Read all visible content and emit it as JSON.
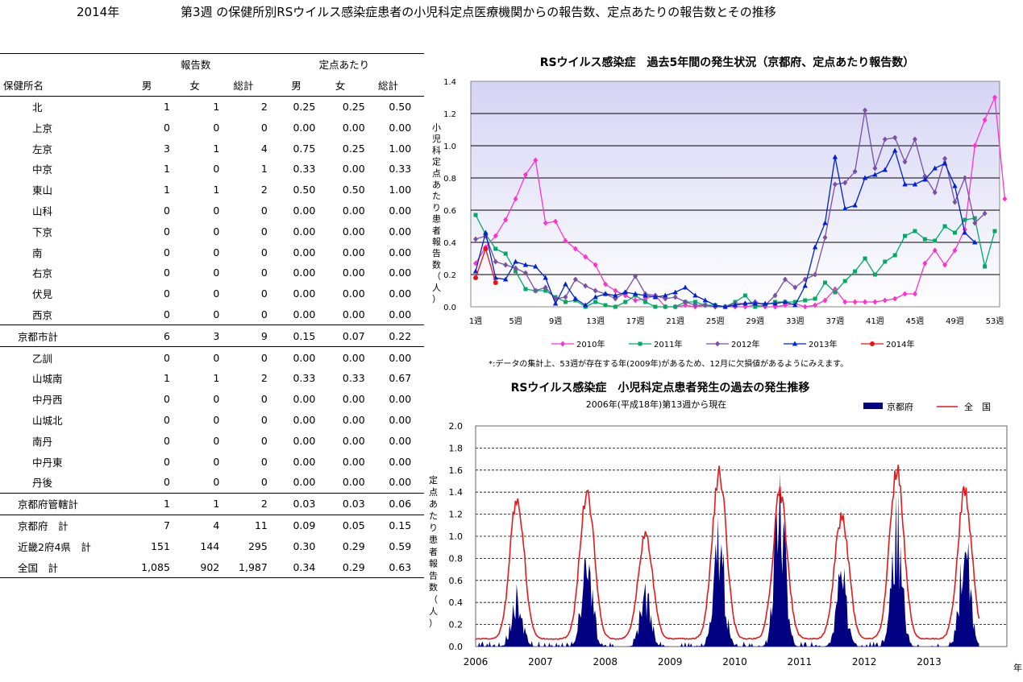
{
  "header": {
    "year": "2014年",
    "title": "第3週 の保健所別RSウイルス感染症患者の小児科定点医療機関からの報告数、定点あたりの報告数とその推移"
  },
  "table": {
    "group_reports": "報告数",
    "group_per": "定点あたり",
    "col_name": "保健所名",
    "cols": [
      "男",
      "女",
      "総計",
      "男",
      "女",
      "総計"
    ],
    "rows": [
      {
        "name": "北",
        "cells": [
          "1",
          "1",
          "2",
          "0.25",
          "0.25",
          "0.50"
        ],
        "style": "indent"
      },
      {
        "name": "上京",
        "cells": [
          "0",
          "0",
          "0",
          "0.00",
          "0.00",
          "0.00"
        ],
        "style": "indent"
      },
      {
        "name": "左京",
        "cells": [
          "3",
          "1",
          "4",
          "0.75",
          "0.25",
          "1.00"
        ],
        "style": "indent"
      },
      {
        "name": "中京",
        "cells": [
          "1",
          "0",
          "1",
          "0.33",
          "0.00",
          "0.33"
        ],
        "style": "indent"
      },
      {
        "name": "東山",
        "cells": [
          "1",
          "1",
          "2",
          "0.50",
          "0.50",
          "1.00"
        ],
        "style": "indent"
      },
      {
        "name": "山科",
        "cells": [
          "0",
          "0",
          "0",
          "0.00",
          "0.00",
          "0.00"
        ],
        "style": "indent"
      },
      {
        "name": "下京",
        "cells": [
          "0",
          "0",
          "0",
          "0.00",
          "0.00",
          "0.00"
        ],
        "style": "indent"
      },
      {
        "name": "南",
        "cells": [
          "0",
          "0",
          "0",
          "0.00",
          "0.00",
          "0.00"
        ],
        "style": "indent"
      },
      {
        "name": "右京",
        "cells": [
          "0",
          "0",
          "0",
          "0.00",
          "0.00",
          "0.00"
        ],
        "style": "indent"
      },
      {
        "name": "伏見",
        "cells": [
          "0",
          "0",
          "0",
          "0.00",
          "0.00",
          "0.00"
        ],
        "style": "indent"
      },
      {
        "name": "西京",
        "cells": [
          "0",
          "0",
          "0",
          "0.00",
          "0.00",
          "0.00"
        ],
        "style": "indent"
      },
      {
        "name": "京都市計",
        "cells": [
          "6",
          "3",
          "9",
          "0.15",
          "0.07",
          "0.22"
        ],
        "style": "sub"
      },
      {
        "name": "乙訓",
        "cells": [
          "0",
          "0",
          "0",
          "0.00",
          "0.00",
          "0.00"
        ],
        "style": "indent"
      },
      {
        "name": "山城南",
        "cells": [
          "1",
          "1",
          "2",
          "0.33",
          "0.33",
          "0.67"
        ],
        "style": "indent"
      },
      {
        "name": "中丹西",
        "cells": [
          "0",
          "0",
          "0",
          "0.00",
          "0.00",
          "0.00"
        ],
        "style": "indent"
      },
      {
        "name": "山城北",
        "cells": [
          "0",
          "0",
          "0",
          "0.00",
          "0.00",
          "0.00"
        ],
        "style": "indent"
      },
      {
        "name": "南丹",
        "cells": [
          "0",
          "0",
          "0",
          "0.00",
          "0.00",
          "0.00"
        ],
        "style": "indent"
      },
      {
        "name": "中丹東",
        "cells": [
          "0",
          "0",
          "0",
          "0.00",
          "0.00",
          "0.00"
        ],
        "style": "indent"
      },
      {
        "name": "丹後",
        "cells": [
          "0",
          "0",
          "0",
          "0.00",
          "0.00",
          "0.00"
        ],
        "style": "indent"
      },
      {
        "name": "京都府管轄計",
        "cells": [
          "1",
          "1",
          "2",
          "0.03",
          "0.03",
          "0.06"
        ],
        "style": "sub"
      },
      {
        "name": "京都府　計",
        "cells": [
          "7",
          "4",
          "11",
          "0.09",
          "0.05",
          "0.15"
        ],
        "style": "sub"
      },
      {
        "name": "近畿2府4県　計",
        "cells": [
          "151",
          "144",
          "295",
          "0.30",
          "0.29",
          "0.59"
        ],
        "style": "sub"
      },
      {
        "name": "全国　計",
        "cells": [
          "1,085",
          "902",
          "1,987",
          "0.34",
          "0.29",
          "0.63"
        ],
        "style": "sub"
      }
    ]
  },
  "chart_data": [
    {
      "type": "line",
      "title": "RSウイルス感染症　過去5年間の発生状況（京都府、定点あたり報告数）",
      "ylabel": "小児科定点あたり患者報告数（人）",
      "ylim": [
        0,
        1.4
      ],
      "yticks": [
        "0.0",
        "0.2",
        "0.4",
        "0.6",
        "0.8",
        "1.0",
        "1.2",
        "1.4"
      ],
      "xticks": [
        "1週",
        "5週",
        "9週",
        "13週",
        "17週",
        "21週",
        "25週",
        "29週",
        "33週",
        "37週",
        "41週",
        "45週",
        "49週",
        "53週"
      ],
      "note": "*:データの集計上、53週が存在する年(2009年)があるため、12月に欠損値があるようにみえます。",
      "series": [
        {
          "name": "2010年",
          "color": "#ff33cc",
          "marker": "diamond",
          "values": [
            0.27,
            0.37,
            0.44,
            0.54,
            0.67,
            0.82,
            0.91,
            0.52,
            0.53,
            0.41,
            0.36,
            0.31,
            0.26,
            0.14,
            0.1,
            0.07,
            0.04,
            0.05,
            0.07,
            0.0,
            0.0,
            0.01,
            0.0,
            0.01,
            0.0,
            0.0,
            0.0,
            0.0,
            0.01,
            0.0,
            0.0,
            0.01,
            0.02,
            0.0,
            0.01,
            0.04,
            0.11,
            0.03,
            0.03,
            0.03,
            0.03,
            0.04,
            0.05,
            0.08,
            0.08,
            0.27,
            0.35,
            0.26,
            0.35,
            0.48,
            1.0,
            1.16,
            1.3,
            0.67
          ]
        },
        {
          "name": "2011年",
          "color": "#00aa66",
          "marker": "square",
          "values": [
            0.57,
            0.45,
            0.36,
            0.33,
            0.22,
            0.11,
            0.1,
            0.1,
            0.06,
            0.03,
            0.04,
            0.0,
            0.03,
            0.01,
            0.0,
            0.03,
            0.07,
            0.03,
            0.0,
            0.0,
            0.0,
            0.03,
            0.03,
            0.01,
            0.01,
            0.0,
            0.03,
            0.07,
            0.0,
            0.01,
            0.03,
            0.03,
            0.03,
            0.04,
            0.05,
            0.15,
            0.09,
            0.16,
            0.22,
            0.3,
            0.2,
            0.28,
            0.32,
            0.44,
            0.47,
            0.42,
            0.41,
            0.5,
            0.46,
            0.54,
            0.55,
            0.25,
            0.47
          ]
        },
        {
          "name": "2012年",
          "color": "#7b4fa3",
          "marker": "diamond",
          "values": [
            0.42,
            0.44,
            0.28,
            0.26,
            0.24,
            0.21,
            0.1,
            0.12,
            0.05,
            0.06,
            0.17,
            0.13,
            0.1,
            0.08,
            0.05,
            0.09,
            0.19,
            0.08,
            0.07,
            0.05,
            0.06,
            0.03,
            0.01,
            0.01,
            0.0,
            0.0,
            0.02,
            0.02,
            0.03,
            0.01,
            0.07,
            0.17,
            0.12,
            0.17,
            0.2,
            0.43,
            0.76,
            0.77,
            0.84,
            1.22,
            0.86,
            1.04,
            1.05,
            0.9,
            1.04,
            0.81,
            0.71,
            0.92,
            0.65,
            0.8,
            0.52,
            0.58
          ]
        },
        {
          "name": "2013年",
          "color": "#0022cc",
          "marker": "triangle",
          "values": [
            0.22,
            0.46,
            0.18,
            0.17,
            0.28,
            0.26,
            0.25,
            0.18,
            0.02,
            0.14,
            0.05,
            0.01,
            0.06,
            0.08,
            0.07,
            0.09,
            0.08,
            0.07,
            0.06,
            0.07,
            0.09,
            0.12,
            0.07,
            0.04,
            0.01,
            0.0,
            0.01,
            0.02,
            0.02,
            0.02,
            0.02,
            0.03,
            0.01,
            0.13,
            0.37,
            0.52,
            0.93,
            0.61,
            0.63,
            0.8,
            0.82,
            0.85,
            0.97,
            0.76,
            0.76,
            0.79,
            0.86,
            0.89,
            0.75,
            0.46,
            0.4
          ]
        },
        {
          "name": "2014年",
          "color": "#ee1111",
          "marker": "circle",
          "values": [
            0.18,
            0.36,
            0.15
          ]
        }
      ]
    },
    {
      "type": "area",
      "title": "RSウイルス感染症　小児科定点患者発生の過去の発生推移",
      "subtitle": "2006年(平成18年)第13週から現在",
      "ylabel": "定点あたり患者報告数（人）",
      "xlabel": "年",
      "ylim": [
        0,
        2.0
      ],
      "yticks": [
        "0.0",
        "0.2",
        "0.4",
        "0.6",
        "0.8",
        "1.0",
        "1.2",
        "1.4",
        "1.6",
        "1.8",
        "2.0"
      ],
      "xticks": [
        "2006",
        "2007",
        "2008",
        "2009",
        "2010",
        "2011",
        "2012",
        "2013"
      ],
      "season_peaks": [
        {
          "center": 0.64,
          "kyoto": 0.44,
          "zenkoku": 1.35
        },
        {
          "center": 1.72,
          "kyoto": 0.82,
          "zenkoku": 1.4
        },
        {
          "center": 2.62,
          "kyoto": 0.43,
          "zenkoku": 1.02
        },
        {
          "center": 3.76,
          "kyoto": 0.9,
          "zenkoku": 1.56
        },
        {
          "center": 4.7,
          "kyoto": 1.2,
          "zenkoku": 1.38
        },
        {
          "center": 5.65,
          "kyoto": 0.56,
          "zenkoku": 1.18
        },
        {
          "center": 6.5,
          "kyoto": 1.05,
          "zenkoku": 1.6
        },
        {
          "center": 7.55,
          "kyoto": 0.88,
          "zenkoku": 1.39
        }
      ],
      "series": [
        {
          "name": "京都府",
          "color": "#000080"
        },
        {
          "name": "全　国",
          "color": "#e41a1c"
        }
      ]
    }
  ]
}
